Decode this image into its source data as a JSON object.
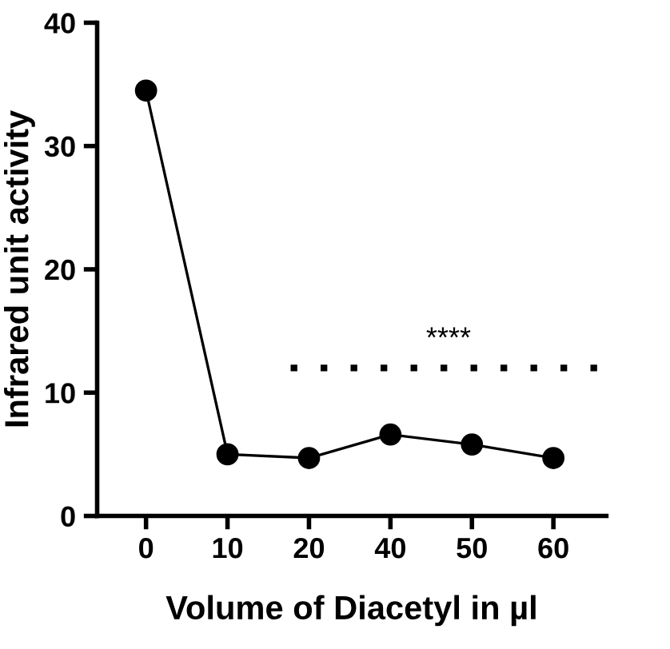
{
  "chart_data": {
    "type": "line",
    "xlabel": "Volume of Diacetyl in µl",
    "ylabel": "Infrared unit activity",
    "categories": [
      "0",
      "10",
      "20",
      "40",
      "50",
      "60"
    ],
    "series": [
      {
        "color": "#000000",
        "values": [
          34.5,
          5.0,
          4.7,
          6.6,
          5.8,
          4.7
        ]
      }
    ],
    "ylim": [
      0,
      40
    ],
    "yticks": [
      0,
      10,
      20,
      30,
      40
    ],
    "marker": "circle",
    "line_style": "solid",
    "grid": false,
    "legend": false,
    "ref_lines": [
      {
        "axis": "y",
        "value": 12,
        "label": "****",
        "line_style": "dotted",
        "color": "#000000"
      }
    ]
  }
}
